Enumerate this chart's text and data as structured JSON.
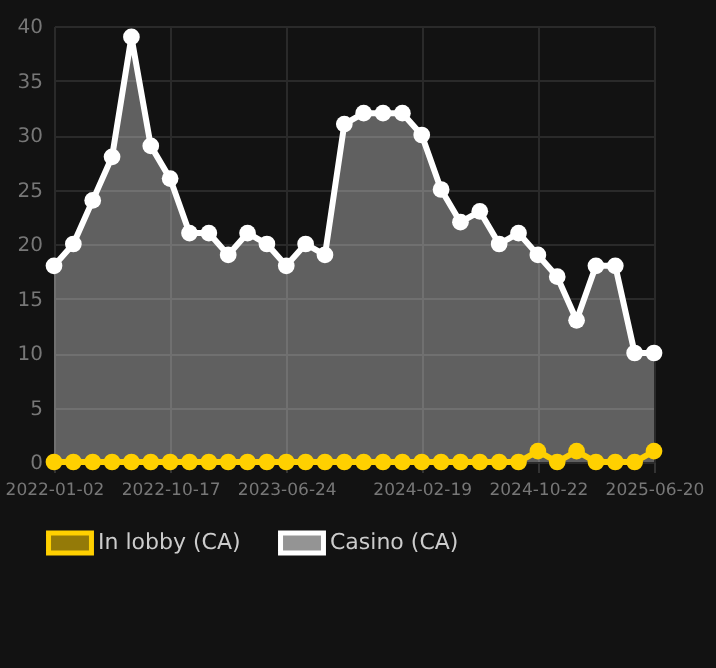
{
  "chart_data": {
    "type": "area",
    "categories": [
      "2022-01-02",
      null,
      null,
      null,
      null,
      null,
      "2022-10-17",
      null,
      null,
      null,
      null,
      null,
      "2023-06-24",
      null,
      null,
      null,
      null,
      null,
      null,
      "2024-02-19",
      null,
      null,
      null,
      null,
      null,
      "2024-10-22",
      null,
      null,
      null,
      null,
      null,
      "2025-06-20"
    ],
    "series": [
      {
        "name": "In lobby (CA)",
        "type": "line",
        "color": "#ffd000",
        "values": [
          0,
          0,
          0,
          0,
          0,
          0,
          0,
          0,
          0,
          0,
          0,
          0,
          0,
          0,
          0,
          0,
          0,
          0,
          0,
          0,
          0,
          0,
          0,
          0,
          0,
          1,
          0,
          1,
          0,
          0,
          0,
          1
        ]
      },
      {
        "name": "Casino (CA)",
        "color": "#ffffff",
        "values": [
          18,
          20,
          24,
          28,
          39,
          29,
          26,
          21,
          21,
          19,
          21,
          20,
          18,
          20,
          19,
          31,
          32,
          32,
          32,
          30,
          25,
          22,
          23,
          20,
          21,
          19,
          17,
          13,
          18,
          18,
          10,
          10
        ]
      }
    ],
    "ylim": [
      0,
      40
    ],
    "yticks": [
      0,
      5,
      10,
      15,
      20,
      25,
      30,
      35,
      40
    ],
    "grid": true,
    "legend": "bottom",
    "marker": "circle"
  }
}
